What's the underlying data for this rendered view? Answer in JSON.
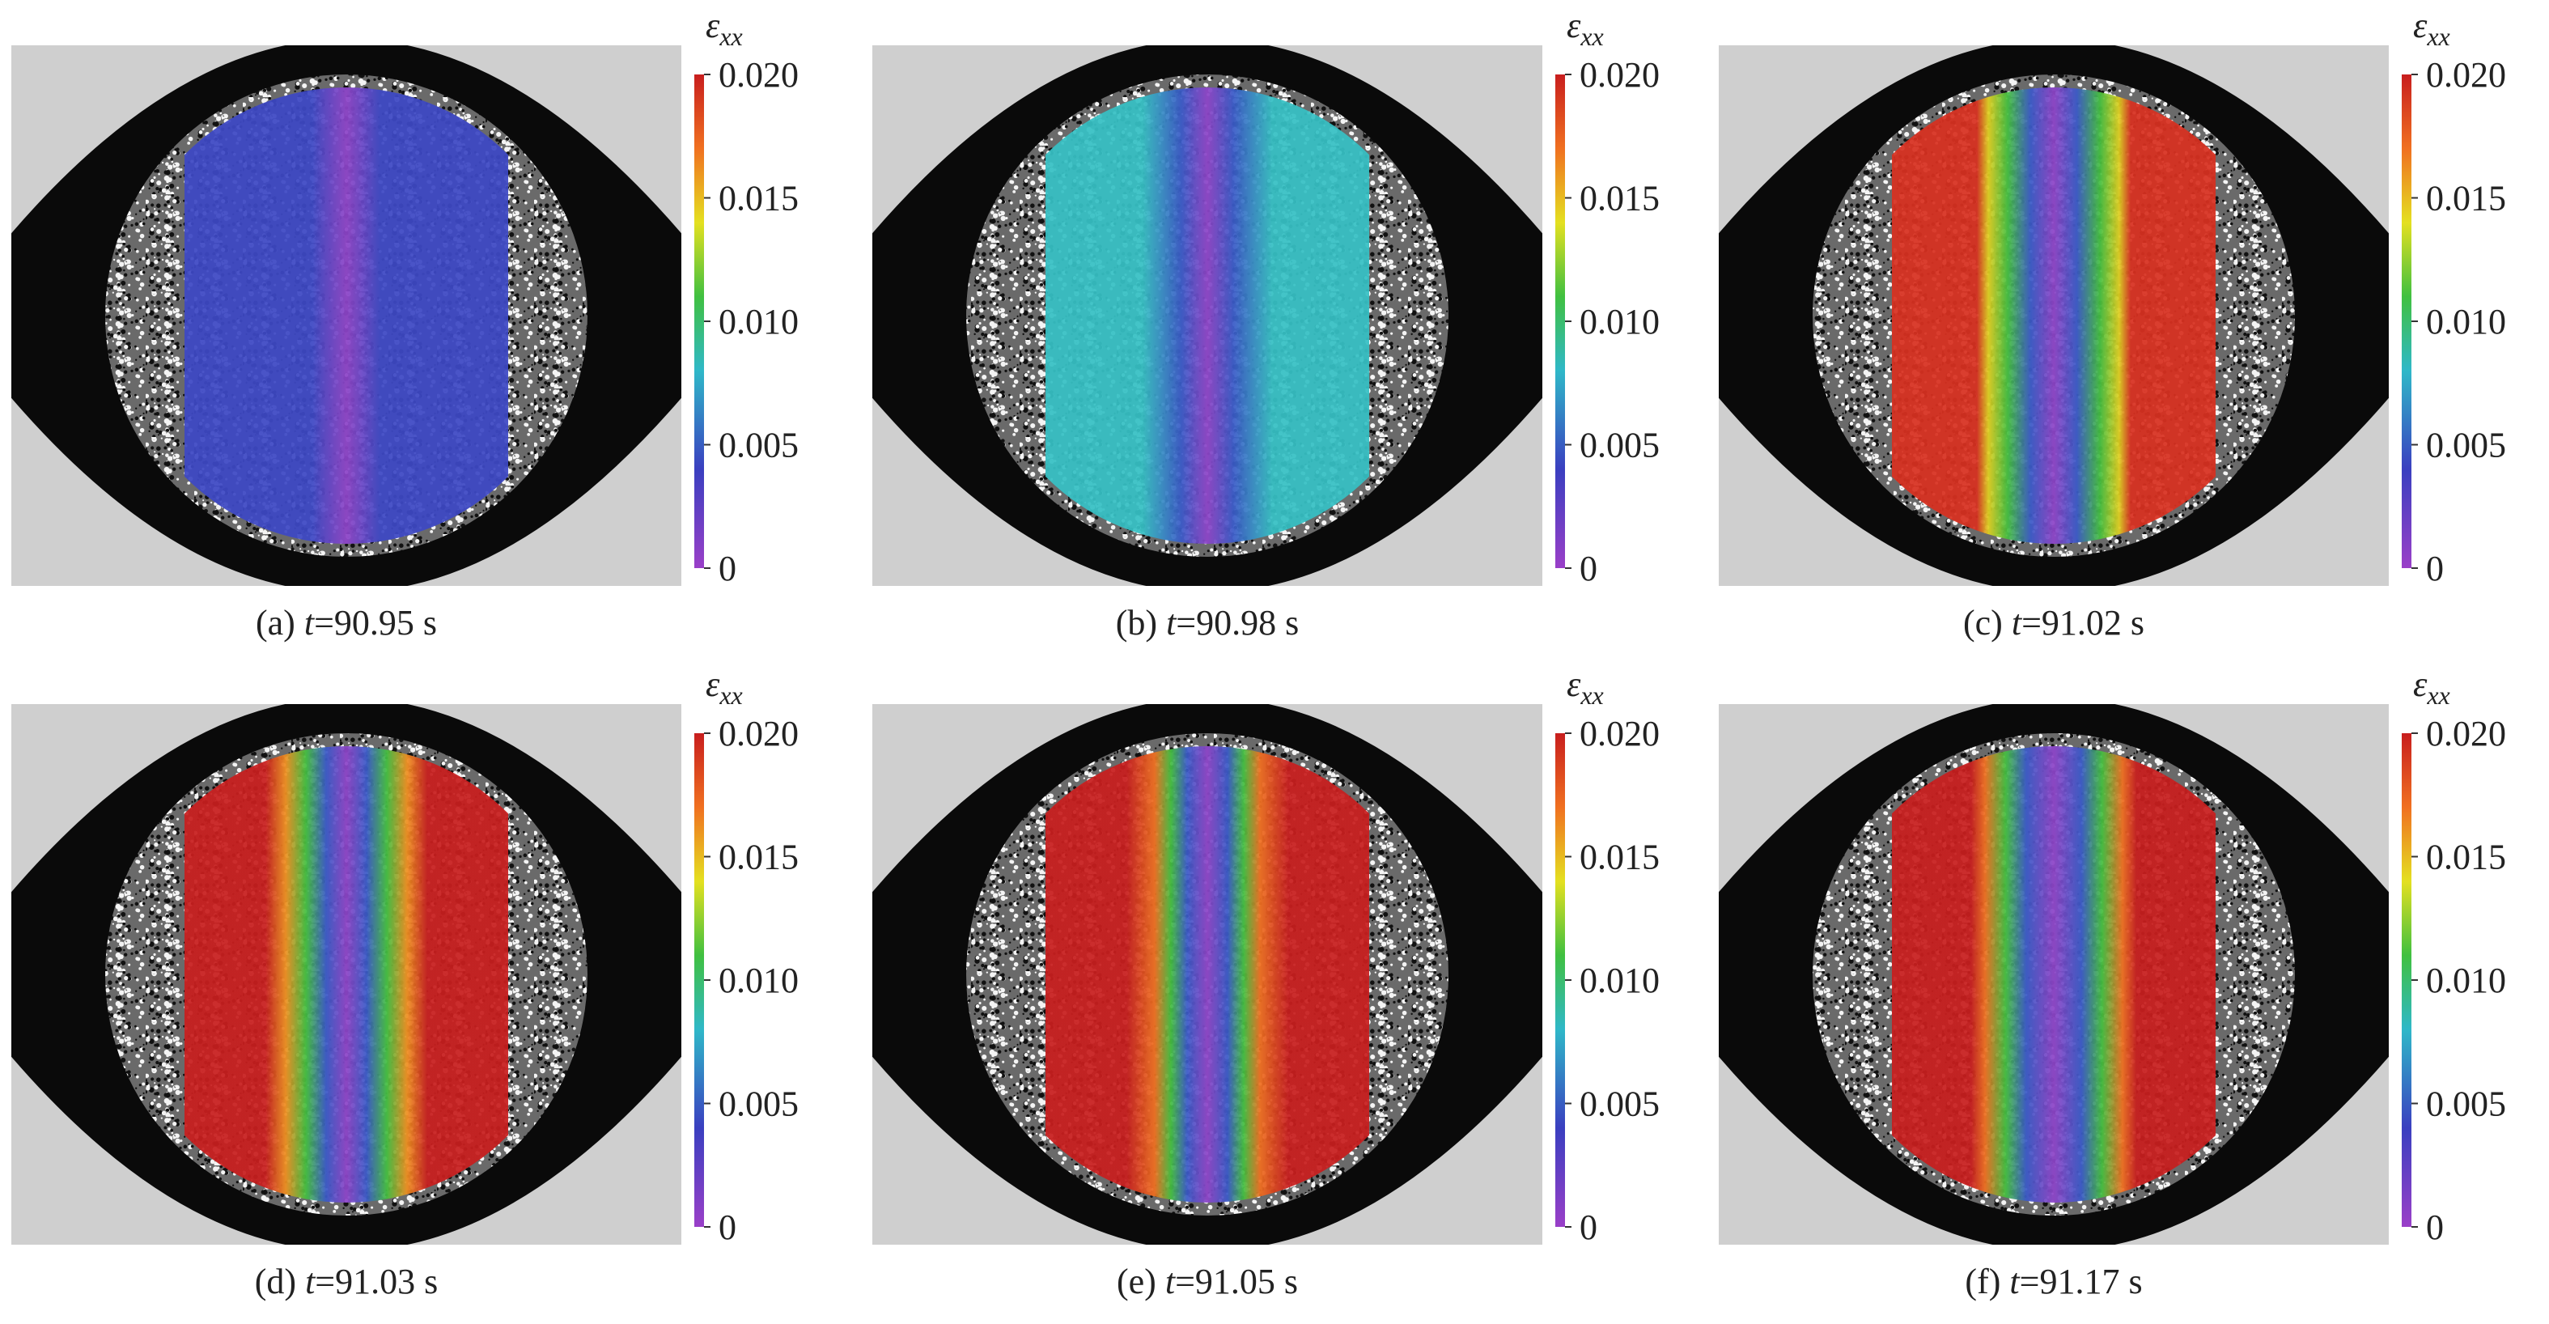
{
  "colorbar": {
    "symbol": "ε",
    "subscript": "xx",
    "range": [
      0,
      0.02
    ],
    "ticks": [
      0,
      0.005,
      {
        "value": 0.01,
        "label": "0.010"
      },
      0.015,
      {
        "value": 0.02,
        "label": "0.020"
      }
    ]
  },
  "panels": [
    {
      "label": "(a)",
      "var": "t",
      "rest": "=90.95 s"
    },
    {
      "label": "(b)",
      "var": "t",
      "rest": "=90.98 s"
    },
    {
      "label": "(c)",
      "var": "t",
      "rest": "=91.02 s"
    },
    {
      "label": "(d)",
      "var": "t",
      "rest": "=91.03 s"
    },
    {
      "label": "(e)",
      "var": "t",
      "rest": "=91.05 s"
    },
    {
      "label": "(f)",
      "var": "t",
      "rest": "=91.17 s"
    }
  ]
}
